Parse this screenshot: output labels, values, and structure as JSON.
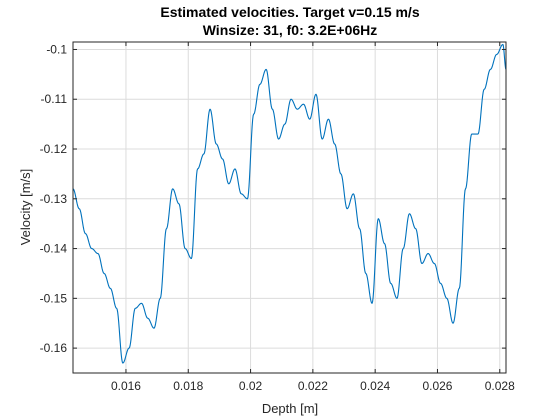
{
  "chart_data": {
    "type": "line",
    "title": "Estimated velocities. Target v=0.15 m/s",
    "subtitle": "Winsize: 31, f0: 3.2E+06Hz",
    "xlabel": "Depth [m]",
    "ylabel": "Velocity [m/s]",
    "xlim": [
      0.0143,
      0.0282
    ],
    "ylim": [
      -0.165,
      -0.0985
    ],
    "x_ticks": [
      0.016,
      0.018,
      0.02,
      0.022,
      0.024,
      0.026,
      0.028
    ],
    "x_tick_labels": [
      "0.016",
      "0.018",
      "0.02",
      "0.022",
      "0.024",
      "0.026",
      "0.028"
    ],
    "y_ticks": [
      -0.16,
      -0.15,
      -0.14,
      -0.13,
      -0.12,
      -0.11,
      -0.1
    ],
    "y_tick_labels": [
      "-0.16",
      "-0.15",
      "-0.14",
      "-0.13",
      "-0.12",
      "-0.11",
      "-0.1"
    ],
    "grid": true,
    "line_color": "#0072BD",
    "series": [
      {
        "x": [
          0.0143,
          0.0145,
          0.0147,
          0.0149,
          0.0151,
          0.0153,
          0.0155,
          0.0157,
          0.0159,
          0.0161,
          0.0163,
          0.0165,
          0.0167,
          0.0169,
          0.0171,
          0.0173,
          0.0175,
          0.0177,
          0.0179,
          0.0181,
          0.0183,
          0.0185,
          0.0187,
          0.0189,
          0.0191,
          0.0193,
          0.0195,
          0.0197,
          0.0199,
          0.0201,
          0.0203,
          0.0205,
          0.0207,
          0.0209,
          0.0211,
          0.0213,
          0.0215,
          0.0217,
          0.0219,
          0.0221,
          0.0223,
          0.0225,
          0.0227,
          0.0229,
          0.0231,
          0.0233,
          0.0235,
          0.0237,
          0.0239,
          0.0241,
          0.0243,
          0.0245,
          0.0247,
          0.0249,
          0.0251,
          0.0253,
          0.0255,
          0.0257,
          0.0259,
          0.0261,
          0.0263,
          0.0265,
          0.0267,
          0.0269,
          0.0271,
          0.0273,
          0.0275,
          0.0277,
          0.0279,
          0.0281,
          0.0282
        ],
        "values": [
          -0.128,
          -0.132,
          -0.137,
          -0.14,
          -0.141,
          -0.145,
          -0.148,
          -0.152,
          -0.163,
          -0.16,
          -0.152,
          -0.151,
          -0.154,
          -0.156,
          -0.15,
          -0.136,
          -0.128,
          -0.131,
          -0.14,
          -0.142,
          -0.124,
          -0.121,
          -0.112,
          -0.119,
          -0.122,
          -0.127,
          -0.124,
          -0.129,
          -0.13,
          -0.113,
          -0.107,
          -0.104,
          -0.112,
          -0.118,
          -0.115,
          -0.11,
          -0.112,
          -0.111,
          -0.114,
          -0.109,
          -0.118,
          -0.114,
          -0.119,
          -0.125,
          -0.132,
          -0.129,
          -0.136,
          -0.145,
          -0.151,
          -0.134,
          -0.139,
          -0.147,
          -0.15,
          -0.14,
          -0.133,
          -0.136,
          -0.143,
          -0.141,
          -0.143,
          -0.147,
          -0.15,
          -0.155,
          -0.148,
          -0.128,
          -0.117,
          -0.117,
          -0.108,
          -0.104,
          -0.101,
          -0.099,
          -0.104
        ]
      }
    ]
  }
}
